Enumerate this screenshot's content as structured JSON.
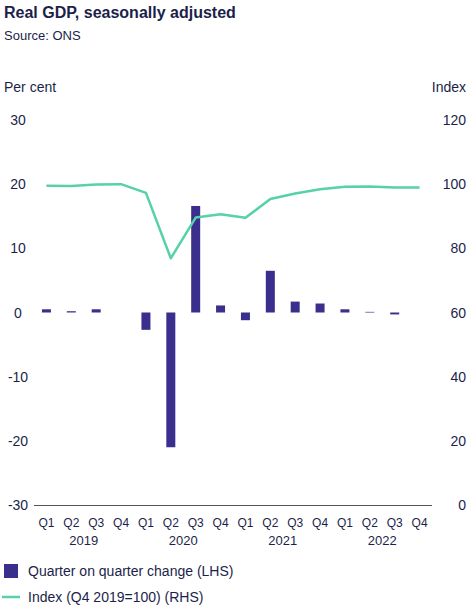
{
  "chart_data": {
    "type": "bar",
    "title": "Real GDP, seasonally adjusted",
    "subtitle": "Source: ONS",
    "y_label": "Per cent",
    "y2_label": "Index",
    "categories": [
      "Q1",
      "Q2",
      "Q3",
      "Q4",
      "Q1",
      "Q2",
      "Q3",
      "Q4",
      "Q1",
      "Q2",
      "Q3",
      "Q4",
      "Q1",
      "Q2",
      "Q3",
      "Q4"
    ],
    "category_groups": [
      "2019",
      "2020",
      "2021",
      "2022"
    ],
    "series": [
      {
        "name": "Quarter on quarter change (LHS)",
        "type": "bar",
        "color": "#3a2f8c",
        "values": [
          0.5,
          0.2,
          0.5,
          0.0,
          -2.7,
          -21.0,
          16.6,
          1.1,
          -1.2,
          6.5,
          1.7,
          1.4,
          0.5,
          0.1,
          -0.3,
          0.0
        ]
      },
      {
        "name": "Index (Q4 2019=100) (RHS)",
        "type": "line",
        "color": "#56d1a8",
        "axis": "y2",
        "values": [
          99.5,
          99.4,
          99.9,
          100,
          97.3,
          76.9,
          89.6,
          90.6,
          89.5,
          95.4,
          97.1,
          98.4,
          99.2,
          99.3,
          99.0,
          99.0
        ]
      }
    ],
    "ylim": [
      -30,
      30
    ],
    "yticks": [
      -30,
      -20,
      -10,
      0,
      10,
      20,
      30
    ],
    "y2lim": [
      0,
      120
    ],
    "y2ticks": [
      0,
      20,
      40,
      60,
      80,
      100,
      120
    ],
    "grid": false,
    "legend": "bottom"
  }
}
